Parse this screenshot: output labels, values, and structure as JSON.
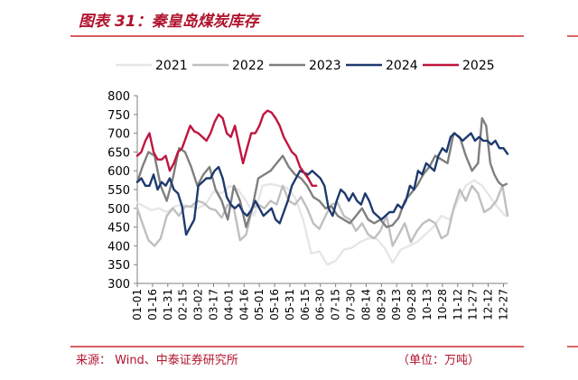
{
  "header": {
    "title": "图表 31：秦皇岛煤炭库存"
  },
  "footer": {
    "source": "来源：   Wind、中泰证券研究所",
    "unit": "（单位：万吨）"
  },
  "colors": {
    "accent": "#b0132d",
    "rule": "#c00000"
  },
  "chart_data": {
    "type": "line",
    "title": "",
    "xlabel": "",
    "ylabel": "",
    "ylim": [
      300,
      800
    ],
    "yticks": [
      300,
      350,
      400,
      450,
      500,
      550,
      600,
      650,
      700,
      750,
      800
    ],
    "x_tick_labels": [
      "01-01",
      "01-16",
      "01-31",
      "02-15",
      "03-02",
      "03-17",
      "04-01",
      "04-16",
      "05-01",
      "05-16",
      "05-31",
      "06-15",
      "06-30",
      "07-15",
      "07-30",
      "08-14",
      "08-29",
      "09-13",
      "09-28",
      "10-13",
      "10-28",
      "11-12",
      "11-27",
      "12-12",
      "12-27"
    ],
    "x_days": [
      1,
      16,
      31,
      46,
      61,
      76,
      91,
      106,
      121,
      136,
      151,
      166,
      181,
      196,
      211,
      226,
      241,
      256,
      271,
      286,
      301,
      316,
      331,
      346,
      361
    ],
    "grid": false,
    "legend_position": "top",
    "series": [
      {
        "name": "2021",
        "color": "#e6e6e6",
        "x": [
          1,
          8,
          15,
          22,
          30,
          38,
          45,
          52,
          60,
          68,
          76,
          84,
          92,
          100,
          108,
          116,
          124,
          132,
          140,
          148,
          156,
          164,
          172,
          180,
          188,
          196,
          204,
          212,
          220,
          228,
          236,
          244,
          252,
          260,
          268,
          276,
          284,
          292,
          300,
          308,
          316,
          324,
          332,
          340,
          348,
          356,
          363
        ],
        "y": [
          515,
          505,
          495,
          500,
          490,
          505,
          510,
          505,
          500,
          510,
          545,
          540,
          560,
          550,
          520,
          480,
          560,
          565,
          560,
          555,
          530,
          470,
          380,
          385,
          350,
          360,
          390,
          395,
          410,
          420,
          420,
          395,
          355,
          390,
          400,
          410,
          430,
          450,
          480,
          470,
          520,
          560,
          575,
          560,
          530,
          500,
          480
        ]
      },
      {
        "name": "2022",
        "color": "#bfbfbf",
        "x": [
          1,
          6,
          12,
          18,
          24,
          30,
          36,
          42,
          48,
          54,
          60,
          66,
          72,
          78,
          84,
          90,
          96,
          102,
          108,
          114,
          120,
          126,
          132,
          138,
          144,
          150,
          156,
          162,
          168,
          174,
          180,
          186,
          192,
          198,
          204,
          210,
          216,
          222,
          228,
          234,
          240,
          246,
          252,
          258,
          264,
          270,
          276,
          282,
          288,
          294,
          300,
          306,
          312,
          318,
          324,
          330,
          336,
          342,
          348,
          354,
          360,
          365
        ],
        "y": [
          500,
          460,
          415,
          400,
          420,
          480,
          500,
          480,
          505,
          505,
          520,
          515,
          500,
          495,
          475,
          510,
          500,
          415,
          430,
          500,
          510,
          500,
          520,
          510,
          560,
          520,
          510,
          530,
          500,
          460,
          445,
          480,
          510,
          515,
          480,
          470,
          440,
          460,
          430,
          420,
          440,
          480,
          400,
          430,
          460,
          410,
          440,
          460,
          470,
          460,
          420,
          430,
          500,
          550,
          520,
          560,
          540,
          490,
          500,
          520,
          560,
          480
        ]
      },
      {
        "name": "2023",
        "color": "#7f7f7f",
        "x": [
          1,
          6,
          12,
          18,
          24,
          30,
          36,
          42,
          48,
          54,
          60,
          66,
          72,
          78,
          84,
          90,
          96,
          102,
          108,
          114,
          120,
          126,
          132,
          138,
          144,
          150,
          156,
          162,
          168,
          174,
          180,
          186,
          192,
          198,
          204,
          210,
          216,
          222,
          228,
          234,
          240,
          246,
          252,
          258,
          264,
          270,
          276,
          282,
          288,
          294,
          300,
          306,
          312,
          318,
          324,
          330,
          336,
          340,
          344,
          348,
          352,
          356,
          360,
          364
        ],
        "y": [
          570,
          610,
          650,
          640,
          560,
          520,
          580,
          660,
          650,
          610,
          560,
          590,
          610,
          550,
          520,
          470,
          560,
          520,
          450,
          500,
          580,
          590,
          600,
          620,
          640,
          610,
          590,
          580,
          560,
          530,
          520,
          500,
          505,
          480,
          470,
          460,
          480,
          500,
          470,
          460,
          470,
          450,
          455,
          475,
          520,
          540,
          560,
          590,
          610,
          640,
          630,
          620,
          700,
          690,
          640,
          600,
          620,
          740,
          720,
          620,
          590,
          570,
          560,
          565
        ]
      },
      {
        "name": "2024",
        "color": "#1f3a6e",
        "x": [
          1,
          5,
          9,
          13,
          17,
          21,
          25,
          29,
          33,
          37,
          41,
          45,
          49,
          53,
          57,
          61,
          65,
          69,
          73,
          77,
          81,
          85,
          89,
          93,
          97,
          101,
          105,
          109,
          113,
          117,
          121,
          125,
          129,
          133,
          137,
          141,
          145,
          149,
          153,
          157,
          161,
          165,
          169,
          173,
          177,
          181,
          185,
          189,
          193,
          197,
          201,
          205,
          209,
          213,
          217,
          221,
          225,
          229,
          233,
          237,
          241,
          245,
          249,
          253,
          257,
          261,
          265,
          269,
          273,
          277,
          281,
          285,
          289,
          293,
          297,
          301,
          305,
          309,
          313,
          317,
          321,
          325,
          329,
          333,
          337,
          341,
          345,
          349,
          353,
          357,
          361,
          365
        ],
        "y": [
          570,
          580,
          560,
          560,
          590,
          550,
          570,
          560,
          580,
          550,
          540,
          505,
          430,
          450,
          470,
          560,
          570,
          580,
          580,
          600,
          610,
          580,
          530,
          510,
          500,
          510,
          490,
          480,
          495,
          520,
          500,
          480,
          490,
          500,
          470,
          460,
          490,
          520,
          560,
          580,
          600,
          595,
          590,
          600,
          590,
          580,
          560,
          500,
          480,
          520,
          550,
          540,
          520,
          540,
          520,
          510,
          540,
          520,
          490,
          480,
          470,
          480,
          490,
          490,
          510,
          500,
          520,
          560,
          550,
          600,
          590,
          620,
          610,
          600,
          640,
          660,
          650,
          690,
          700,
          690,
          680,
          690,
          700,
          680,
          690,
          680,
          680,
          670,
          680,
          660,
          660,
          645
        ]
      },
      {
        "name": "2025",
        "color": "#c0153f",
        "x": [
          1,
          5,
          9,
          13,
          17,
          21,
          25,
          29,
          33,
          37,
          41,
          45,
          49,
          53,
          57,
          61,
          65,
          69,
          73,
          77,
          81,
          85,
          89,
          93,
          97,
          101,
          105,
          109,
          113,
          117,
          121,
          125,
          129,
          133,
          137,
          141,
          145,
          149,
          153,
          157,
          161,
          165,
          169,
          173,
          177
        ],
        "y": [
          640,
          650,
          680,
          700,
          650,
          630,
          630,
          640,
          600,
          620,
          650,
          660,
          690,
          720,
          705,
          700,
          690,
          680,
          700,
          730,
          750,
          740,
          700,
          690,
          720,
          670,
          620,
          660,
          700,
          700,
          720,
          750,
          760,
          755,
          740,
          720,
          690,
          670,
          650,
          640,
          610,
          595,
          580,
          560,
          560
        ]
      }
    ]
  }
}
